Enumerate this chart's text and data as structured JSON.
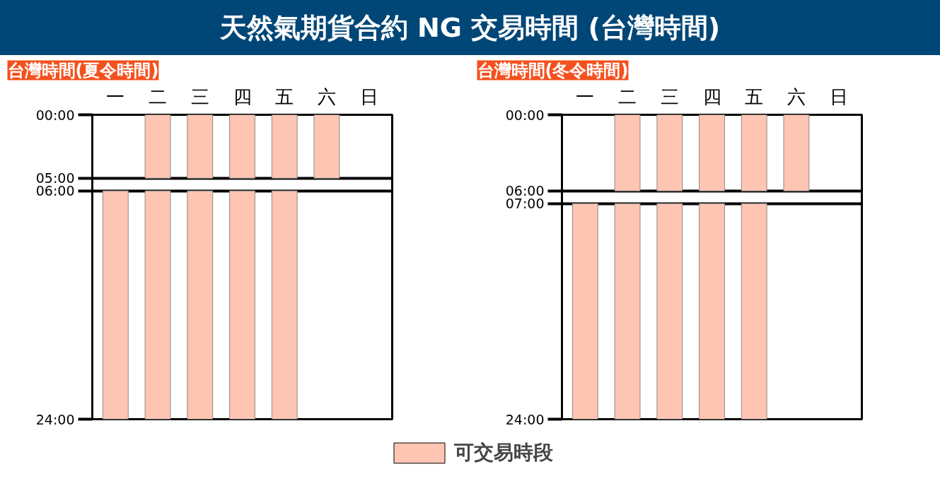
{
  "chart_data": [
    {
      "type": "bar",
      "title": "天然氣期貨合約 NG 交易時間 (台灣時間)",
      "subtitle": "台灣時間(夏令時間)",
      "categories": [
        "一",
        "二",
        "三",
        "四",
        "五",
        "六",
        "日"
      ],
      "series": [
        {
          "name": "可交易時段",
          "color": "#fdc5b2",
          "base": [
            null,
            0,
            0,
            0,
            0,
            0,
            null
          ],
          "values": [
            null,
            5,
            5,
            5,
            5,
            5,
            null
          ]
        },
        {
          "color": "#fdc5b2",
          "base": [
            6,
            6,
            6,
            6,
            6,
            null,
            null
          ],
          "values": [
            18,
            18,
            18,
            18,
            18,
            null,
            null
          ]
        }
      ],
      "ylim": [
        24,
        0
      ],
      "yticks": [
        {
          "value": 0,
          "label": "00:00"
        },
        {
          "value": 5,
          "label": "05:00"
        },
        {
          "value": 6,
          "label": "06:00"
        },
        {
          "value": 24,
          "label": "24:00"
        }
      ],
      "grid": "y",
      "legend": "bottom"
    },
    {
      "type": "bar",
      "subtitle": "台灣時間(冬令時間)",
      "categories": [
        "一",
        "二",
        "三",
        "四",
        "五",
        "六",
        "日"
      ],
      "series": [
        {
          "color": "#fdc5b2",
          "base": [
            null,
            0,
            0,
            0,
            0,
            0,
            null
          ],
          "values": [
            null,
            6,
            6,
            6,
            6,
            6,
            null
          ]
        },
        {
          "color": "#fdc5b2",
          "base": [
            7,
            7,
            7,
            7,
            7,
            null,
            null
          ],
          "values": [
            17,
            17,
            17,
            17,
            17,
            null,
            null
          ]
        }
      ],
      "ylim": [
        24,
        0
      ],
      "yticks": [
        {
          "value": 0,
          "label": "00:00"
        },
        {
          "value": 6,
          "label": "06:00"
        },
        {
          "value": 7,
          "label": "07:00"
        },
        {
          "value": 24,
          "label": "24:00"
        }
      ],
      "grid": "y"
    }
  ]
}
